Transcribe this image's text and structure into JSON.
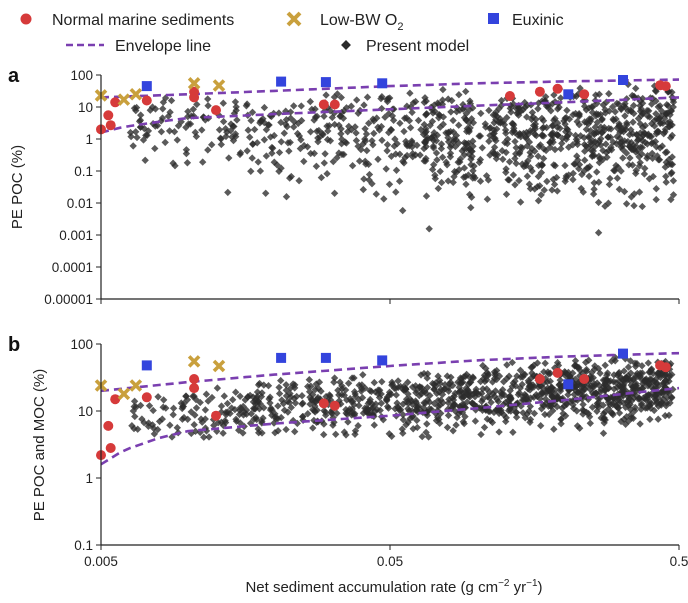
{
  "legend": {
    "normal": "Normal marine sediments",
    "lowbw": "Low-BW O",
    "lowbw_sub": "2",
    "euxinic": "Euxinic",
    "envelope": "Envelope line",
    "model": "Present model"
  },
  "colors": {
    "normal": "#d63a3a",
    "lowbw": "#c9a03d",
    "euxinic": "#3344dd",
    "envelope": "#7a3fb0",
    "model": "#2b2b2b"
  },
  "x_axis": {
    "label": "Net sediment accumulation rate (g cm",
    "label_sup1": "−2",
    "label_mid": " yr",
    "label_sup2": "−1",
    "label_end": ")",
    "scale": "log",
    "range": [
      0.005,
      0.5
    ],
    "ticks": [
      {
        "value": 0.005,
        "label": "0.005"
      },
      {
        "value": 0.05,
        "label": "0.05"
      },
      {
        "value": 0.5,
        "label": "0.5"
      }
    ]
  },
  "chart_data": [
    {
      "panel": "a",
      "type": "scatter",
      "ylabel": "PE POC (%)",
      "yscale": "log",
      "ylim": [
        1e-05,
        100
      ],
      "yticks": [
        {
          "value": 100,
          "label": "100"
        },
        {
          "value": 10,
          "label": "10"
        },
        {
          "value": 1,
          "label": "1"
        },
        {
          "value": 0.1,
          "label": "0.1"
        },
        {
          "value": 0.01,
          "label": "0.01"
        },
        {
          "value": 0.001,
          "label": "0.001"
        },
        {
          "value": 0.0001,
          "label": "0.0001"
        },
        {
          "value": 1e-05,
          "label": "0.00001"
        }
      ],
      "envelope_upper": [
        [
          0.005,
          20
        ],
        [
          0.01,
          25
        ],
        [
          0.02,
          32
        ],
        [
          0.05,
          45
        ],
        [
          0.1,
          55
        ],
        [
          0.2,
          63
        ],
        [
          0.5,
          72
        ]
      ],
      "envelope_lower": [
        [
          0.005,
          1.6
        ],
        [
          0.006,
          2.4
        ],
        [
          0.008,
          3.5
        ],
        [
          0.01,
          4.5
        ],
        [
          0.02,
          6.0
        ],
        [
          0.05,
          8.5
        ],
        [
          0.1,
          11
        ],
        [
          0.2,
          14
        ],
        [
          0.5,
          20
        ]
      ],
      "normal": [
        [
          0.005,
          2
        ],
        [
          0.0053,
          5.5
        ],
        [
          0.0054,
          2.7
        ],
        [
          0.0056,
          14
        ],
        [
          0.0072,
          16
        ],
        [
          0.0105,
          20
        ],
        [
          0.0105,
          30
        ],
        [
          0.0125,
          8
        ],
        [
          0.0295,
          12
        ],
        [
          0.0322,
          12
        ],
        [
          0.13,
          22
        ],
        [
          0.165,
          30
        ],
        [
          0.19,
          37
        ],
        [
          0.235,
          25
        ],
        [
          0.43,
          48
        ],
        [
          0.45,
          45
        ]
      ],
      "lowbw": [
        [
          0.005,
          23
        ],
        [
          0.006,
          17
        ],
        [
          0.0066,
          25
        ],
        [
          0.0105,
          55
        ],
        [
          0.0128,
          47
        ]
      ],
      "euxinic": [
        [
          0.0072,
          45
        ],
        [
          0.021,
          62
        ],
        [
          0.03,
          60
        ],
        [
          0.047,
          55
        ],
        [
          0.32,
          70
        ],
        [
          0.207,
          25
        ]
      ],
      "model_seed": 11
    },
    {
      "panel": "b",
      "type": "scatter",
      "ylabel": "PE POC and MOC (%)",
      "yscale": "log",
      "ylim": [
        0.1,
        100
      ],
      "yticks": [
        {
          "value": 100,
          "label": "100"
        },
        {
          "value": 10,
          "label": "10"
        },
        {
          "value": 1,
          "label": "1"
        },
        {
          "value": 0.1,
          "label": "0.1"
        }
      ],
      "envelope_upper": [
        [
          0.005,
          20
        ],
        [
          0.01,
          27
        ],
        [
          0.02,
          35
        ],
        [
          0.05,
          47
        ],
        [
          0.1,
          57
        ],
        [
          0.2,
          65
        ],
        [
          0.5,
          73
        ]
      ],
      "envelope_lower": [
        [
          0.005,
          1.6
        ],
        [
          0.006,
          2.6
        ],
        [
          0.008,
          4.0
        ],
        [
          0.01,
          5.0
        ],
        [
          0.02,
          6.5
        ],
        [
          0.05,
          8.5
        ],
        [
          0.1,
          11
        ],
        [
          0.2,
          14.5
        ],
        [
          0.5,
          22
        ]
      ],
      "normal": [
        [
          0.005,
          2.2
        ],
        [
          0.0053,
          6
        ],
        [
          0.0054,
          2.8
        ],
        [
          0.0056,
          15
        ],
        [
          0.0072,
          16
        ],
        [
          0.0105,
          22
        ],
        [
          0.0105,
          30
        ],
        [
          0.0125,
          8.5
        ],
        [
          0.0295,
          13
        ],
        [
          0.0322,
          12
        ],
        [
          0.165,
          30
        ],
        [
          0.19,
          37
        ],
        [
          0.235,
          30
        ],
        [
          0.43,
          48
        ],
        [
          0.45,
          45
        ]
      ],
      "lowbw": [
        [
          0.005,
          24
        ],
        [
          0.006,
          18
        ],
        [
          0.0066,
          24
        ],
        [
          0.0105,
          55
        ],
        [
          0.0128,
          47
        ]
      ],
      "euxinic": [
        [
          0.0072,
          48
        ],
        [
          0.021,
          62
        ],
        [
          0.03,
          62
        ],
        [
          0.047,
          57
        ],
        [
          0.32,
          72
        ],
        [
          0.207,
          25
        ]
      ],
      "model_seed": 29
    }
  ]
}
